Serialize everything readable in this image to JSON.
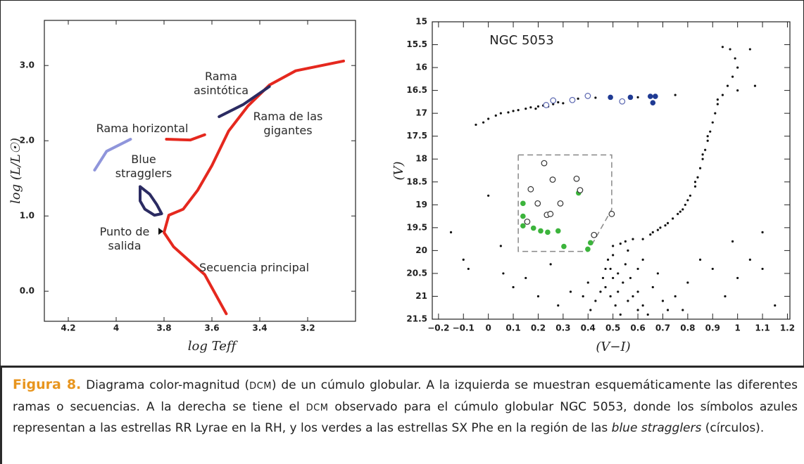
{
  "chart_data": [
    {
      "type": "line",
      "xlabel": "log Teff",
      "ylabel": "log (L/L☉)",
      "xlim": [
        4.3,
        3.0
      ],
      "ylim": [
        -0.4,
        3.6
      ],
      "xticks": [
        4.2,
        4.0,
        3.8,
        3.6,
        3.4,
        3.2
      ],
      "yticks": [
        {
          "value": 0,
          "label": "0.0"
        },
        {
          "value": 1,
          "label": "1.0"
        },
        {
          "value": 2,
          "label": "2.0"
        },
        {
          "value": 3,
          "label": "3.0"
        }
      ],
      "annotations": [
        "Rama asintótica",
        "Rama de las gigantes",
        "Rama horizontal",
        "Blue stragglers",
        "Punto de salida",
        "Secuencia principal"
      ],
      "series": [
        {
          "color": "#e5281e",
          "x": [
            3.54,
            3.63,
            3.76,
            3.8,
            3.78,
            3.72,
            3.66,
            3.6,
            3.53,
            3.45,
            3.36,
            3.25,
            3.05
          ],
          "values": [
            -0.3,
            0.22,
            0.59,
            0.78,
            1.01,
            1.09,
            1.34,
            1.67,
            2.13,
            2.46,
            2.74,
            2.93,
            3.06
          ]
        },
        {
          "color": "#e5281e",
          "x": [
            3.79,
            3.69,
            3.63
          ],
          "values": [
            2.02,
            2.01,
            2.08
          ]
        },
        {
          "color": "#8f95db",
          "x": [
            4.09,
            4.04,
            3.94
          ],
          "values": [
            1.61,
            1.86,
            2.02
          ]
        },
        {
          "color": "#2b2b62",
          "x": [
            3.9,
            3.86,
            3.83,
            3.81,
            3.84,
            3.88,
            3.9,
            3.9
          ],
          "values": [
            1.39,
            1.29,
            1.15,
            1.03,
            1.01,
            1.09,
            1.2,
            1.39
          ]
        },
        {
          "color": "#2b2b62",
          "x": [
            3.57,
            3.47,
            3.36
          ],
          "values": [
            2.32,
            2.48,
            2.72
          ]
        }
      ]
    },
    {
      "type": "scatter",
      "title": "NGC 5053",
      "xlabel": "(V−I)",
      "ylabel": "(V)",
      "xlim": [
        -0.225,
        1.21
      ],
      "ylim": [
        21.5,
        15
      ],
      "xticks": [
        {
          "value": -0.2,
          "label": "−0.2"
        },
        {
          "value": -0.1,
          "label": "−0.1"
        },
        0,
        0.1,
        0.2,
        0.3,
        0.4,
        0.5,
        0.6,
        0.7,
        0.8,
        0.9,
        1,
        1.1,
        1.2
      ],
      "yticks": [
        15,
        15.5,
        16,
        16.5,
        17,
        17.5,
        18,
        18.5,
        19,
        19.5,
        20,
        20.5,
        21,
        21.5
      ],
      "highlight_region": {
        "x": [
          0.12,
          0.495,
          0.495,
          0.4,
          0.12,
          0.12
        ],
        "y": [
          17.91,
          17.91,
          19.1,
          20.02,
          20.02,
          17.91
        ]
      },
      "series": [
        {
          "color": "#111111",
          "marker": "dot",
          "x": [
            -0.05,
            -0.02,
            0.0,
            0.03,
            0.05,
            0.08,
            0.1,
            0.12,
            0.15,
            0.17,
            0.19,
            0.2,
            0.22,
            0.24,
            0.26,
            0.28,
            0.3,
            0.36,
            0.43,
            0.6,
            0.75,
            0.94,
            0.97,
            0.99,
            1.0,
            0.98,
            0.96,
            0.94,
            0.92,
            0.91,
            0.9,
            0.89,
            0.88,
            0.87,
            0.86,
            0.85,
            0.84,
            0.83,
            0.81,
            0.79,
            0.77,
            0.74,
            0.71,
            0.68,
            0.65,
            0.62,
            0.88,
            0.86,
            0.83,
            0.8,
            0.76,
            0.72,
            0.92,
            1.05,
            1.0,
            0.78,
            0.69,
            0.66,
            0.5,
            0.53,
            0.55,
            0.58,
            0.5,
            0.48,
            0.47,
            0.46,
            0.47,
            0.49,
            0.51,
            0.53,
            0.55,
            0.57,
            0.6,
            0.62,
            0.64,
            0.52,
            0.54,
            0.58,
            0.6,
            0.56,
            0.5,
            0.45,
            0.43,
            0.41,
            0.66,
            0.7,
            0.72,
            0.68,
            0.62,
            0.49,
            0.52,
            0.56,
            0.6,
            0.4,
            0.38,
            0.75,
            0.78,
            0.8,
            -0.15,
            -0.1,
            -0.08,
            0.06,
            0.05,
            0.1,
            0.15,
            0.2,
            0.25,
            0.28,
            0.33,
            0.9,
            1.0,
            1.05,
            1.1,
            0.95,
            1.15,
            0.98,
            0.85,
            1.07,
            0.0,
            1.1
          ],
          "values": [
            17.25,
            17.2,
            17.12,
            17.05,
            17.0,
            16.98,
            16.95,
            16.93,
            16.9,
            16.87,
            16.9,
            16.85,
            16.83,
            16.85,
            16.8,
            16.76,
            16.78,
            16.68,
            16.66,
            16.65,
            16.6,
            15.55,
            15.6,
            15.8,
            16.0,
            16.2,
            16.4,
            16.6,
            16.8,
            17.0,
            17.2,
            17.4,
            17.6,
            17.8,
            18.0,
            18.2,
            18.4,
            18.6,
            18.8,
            19.0,
            19.15,
            19.3,
            19.45,
            19.55,
            19.65,
            19.75,
            17.5,
            17.9,
            18.5,
            18.9,
            19.2,
            19.4,
            16.7,
            15.6,
            16.5,
            19.1,
            19.5,
            19.6,
            19.9,
            19.85,
            19.8,
            19.75,
            20.1,
            20.2,
            20.4,
            20.6,
            20.8,
            21.0,
            21.2,
            21.4,
            20.3,
            20.6,
            20.9,
            21.2,
            21.4,
            20.5,
            20.7,
            21.0,
            20.4,
            20.0,
            20.6,
            20.9,
            21.1,
            21.3,
            20.8,
            21.1,
            21.3,
            20.5,
            20.2,
            20.4,
            20.9,
            21.1,
            21.3,
            20.7,
            21.0,
            21.0,
            21.3,
            20.7,
            19.6,
            20.2,
            20.4,
            20.5,
            19.9,
            20.8,
            20.6,
            21.0,
            20.3,
            21.2,
            20.9,
            20.4,
            20.6,
            20.2,
            20.4,
            21.0,
            21.2,
            19.8,
            20.2,
            16.4,
            18.8,
            19.6
          ]
        },
        {
          "color": "#5a66b0",
          "marker": "open",
          "x": [
            0.232,
            0.26,
            0.337,
            0.399,
            0.537
          ],
          "values": [
            16.82,
            16.72,
            16.71,
            16.62,
            16.74
          ]
        },
        {
          "color": "#1f3a93",
          "marker": "filled",
          "x": [
            0.49,
            0.57,
            0.65,
            0.67,
            0.66
          ],
          "values": [
            16.65,
            16.65,
            16.63,
            16.63,
            16.77
          ]
        },
        {
          "color": "#3cb43c",
          "marker": "filled",
          "x": [
            0.139,
            0.139,
            0.139,
            0.181,
            0.21,
            0.238,
            0.28,
            0.303,
            0.362,
            0.41,
            0.399
          ],
          "values": [
            18.97,
            19.25,
            19.46,
            19.51,
            19.57,
            19.6,
            19.57,
            19.91,
            18.74,
            19.83,
            19.97
          ]
        },
        {
          "color": "#333333",
          "marker": "open",
          "x": [
            0.224,
            0.17,
            0.258,
            0.354,
            0.368,
            0.156,
            0.198,
            0.235,
            0.289,
            0.249,
            0.495,
            0.424
          ],
          "values": [
            18.09,
            18.66,
            18.45,
            18.43,
            18.68,
            19.37,
            18.97,
            19.22,
            18.97,
            19.2,
            19.2,
            19.66
          ]
        }
      ]
    }
  ],
  "caption": {
    "label": "Figura 8.",
    "segments": [
      "Diagrama color-magnitud (",
      "DCM",
      ") de un cúmulo globular. A la izquierda se muestran esquemáticamente las diferentes ramas o secuencias. A la derecha se tiene el ",
      "DCM",
      " observado para el cúmulo globular NGC 5053, donde los símbolos azules representan a las estrellas RR Lyrae en la RH, y los verdes a las estrellas SX Phe en la región de las ",
      "blue stragglers",
      " (círculos)."
    ]
  }
}
